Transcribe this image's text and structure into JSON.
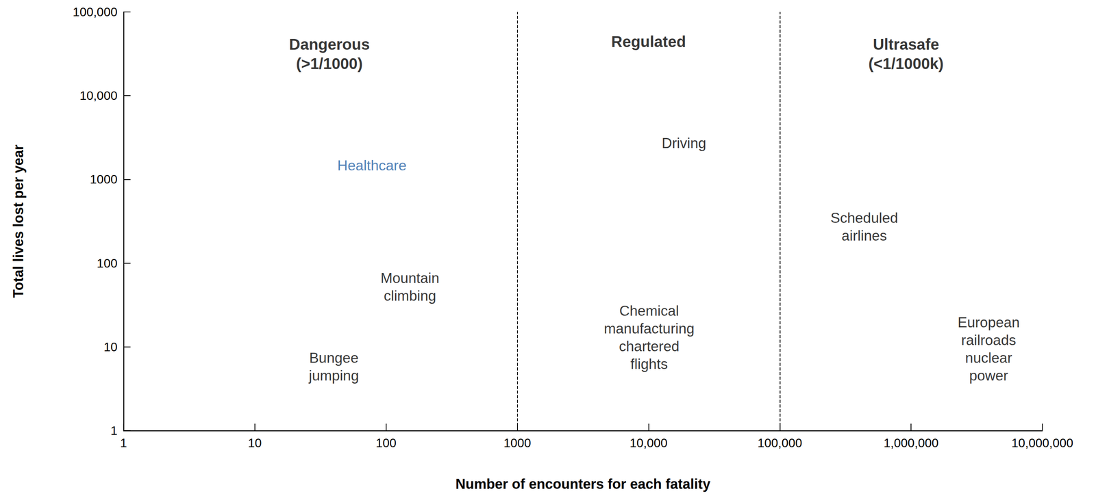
{
  "chart_data": {
    "type": "scatter",
    "x_label": "Number of encounters for each fatality",
    "y_label": "Total lives lost per year",
    "log": true,
    "grid": false,
    "xlim": [
      1,
      10000000
    ],
    "ylim": [
      1,
      100000
    ],
    "xticks": [
      1,
      10,
      100,
      1000,
      {
        "value": 10000,
        "label": "10,000"
      },
      {
        "value": 100000,
        "label": "100,000"
      },
      {
        "value": 1000000,
        "label": "1,000,000"
      },
      {
        "value": 10000000,
        "label": "10,000,000"
      }
    ],
    "yticks": [
      1,
      10,
      100,
      1000,
      {
        "value": 10000,
        "label": "10,000"
      },
      {
        "value": 100000,
        "label": "100,000"
      }
    ],
    "vlines": [
      1000,
      100000
    ],
    "line_style": "dashed",
    "regions": [
      {
        "text": "Dangerous\n(>1/1000)",
        "x": 37,
        "y": 31600
      },
      {
        "text": "Regulated",
        "x": 10000,
        "y": 44000
      },
      {
        "text": "Ultrasafe\n(<1/1000k)",
        "x": 915000,
        "y": 31600
      }
    ],
    "annotations": [
      {
        "text": "Healthcare",
        "x": 78,
        "y": 1470,
        "color": "#1f5fa5"
      },
      {
        "text": "Driving",
        "x": 18600,
        "y": 2700
      },
      {
        "text": "Mountain\nclimbing",
        "x": 152,
        "y": 52
      },
      {
        "text": "Bungee\njumping",
        "x": 40,
        "y": 5.8
      },
      {
        "text": "Chemical\nmanufacturing\nchartered\nflights",
        "x": 10100,
        "y": 13
      },
      {
        "text": "Scheduled\nairlines",
        "x": 440000,
        "y": 270
      },
      {
        "text": "European\nrailroads\nnuclear\npower",
        "x": 3900000,
        "y": 9.4
      }
    ]
  }
}
